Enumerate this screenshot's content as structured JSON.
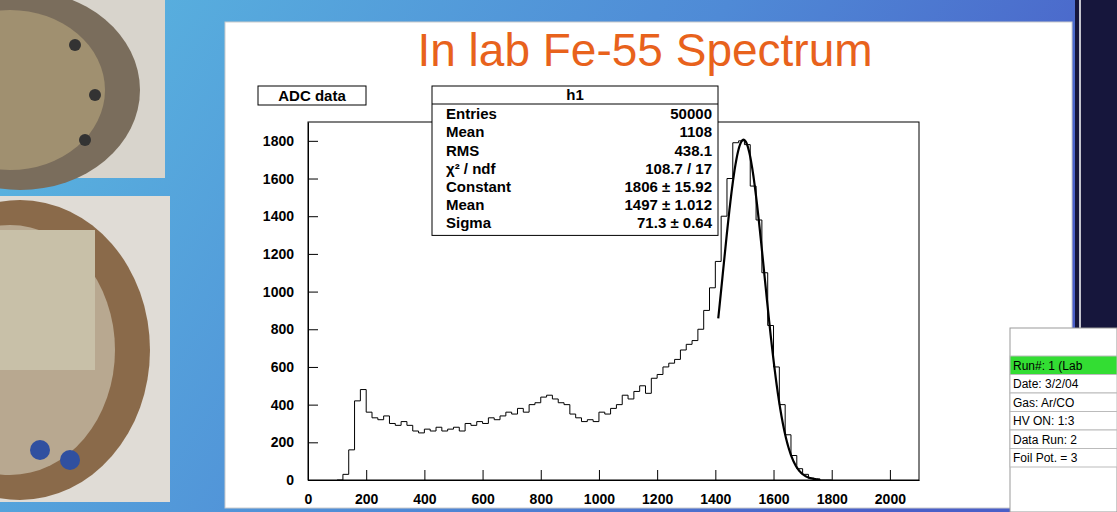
{
  "chart_data": {
    "type": "histogram",
    "title": "In lab Fe-55 Spectrum",
    "subtitle": "ADC data",
    "bins": [
      100,
      120,
      140,
      160,
      180,
      200,
      220,
      240,
      260,
      280,
      300,
      320,
      340,
      360,
      380,
      400,
      420,
      440,
      460,
      480,
      500,
      520,
      540,
      560,
      580,
      600,
      620,
      640,
      660,
      680,
      700,
      720,
      740,
      760,
      780,
      800,
      820,
      840,
      860,
      880,
      900,
      920,
      940,
      960,
      980,
      1000,
      1020,
      1040,
      1060,
      1080,
      1100,
      1120,
      1140,
      1160,
      1180,
      1200,
      1220,
      1240,
      1260,
      1280,
      1300,
      1320,
      1340,
      1360,
      1380,
      1400,
      1420,
      1440,
      1460,
      1480,
      1500,
      1520,
      1540,
      1560,
      1580,
      1600,
      1620,
      1640,
      1660,
      1680,
      1700,
      1720,
      1740,
      1760,
      1780,
      1800
    ],
    "values": [
      0,
      30,
      160,
      420,
      480,
      360,
      330,
      320,
      340,
      300,
      290,
      310,
      290,
      260,
      250,
      270,
      260,
      280,
      260,
      270,
      280,
      260,
      300,
      290,
      310,
      300,
      330,
      320,
      340,
      360,
      350,
      380,
      360,
      400,
      410,
      440,
      450,
      430,
      410,
      400,
      350,
      330,
      310,
      320,
      310,
      360,
      350,
      380,
      400,
      450,
      430,
      470,
      500,
      460,
      540,
      560,
      600,
      620,
      640,
      690,
      720,
      740,
      800,
      900,
      1020,
      1160,
      1400,
      1600,
      1790,
      1800,
      1780,
      1560,
      1380,
      1100,
      820,
      600,
      400,
      240,
      130,
      60,
      30,
      10,
      4,
      0,
      0
    ],
    "color": "#000000",
    "xlim": [
      0,
      2100
    ],
    "xticks": [
      0,
      200,
      400,
      600,
      800,
      1000,
      1200,
      1400,
      1600,
      1800,
      2000
    ],
    "ylim": [
      0,
      1900
    ],
    "yticks": [
      0,
      200,
      400,
      600,
      800,
      1000,
      1200,
      1400,
      1600,
      1800
    ],
    "fit": {
      "constant": 1806,
      "mean": 1497,
      "sigma": 71.3,
      "range": [
        1410,
        1760
      ]
    },
    "stats": {
      "title": "h1",
      "rows": [
        [
          "Entries",
          "50000"
        ],
        [
          "Mean",
          "1108"
        ],
        [
          "RMS",
          "438.1"
        ],
        [
          "χ² / ndf",
          "108.7 / 17"
        ],
        [
          "Constant",
          "1806 ± 15.92"
        ],
        [
          "Mean",
          "1497 ± 1.012"
        ],
        [
          "Sigma",
          "71.3 ± 0.64"
        ]
      ]
    }
  },
  "run_table": {
    "rows": [
      "Run#: 1 (Lab",
      "Date: 3/2/04",
      "Gas: Ar/CO",
      "HV ON: 1:3",
      "Data Run: 2",
      "Foil Pot. = 3"
    ]
  }
}
